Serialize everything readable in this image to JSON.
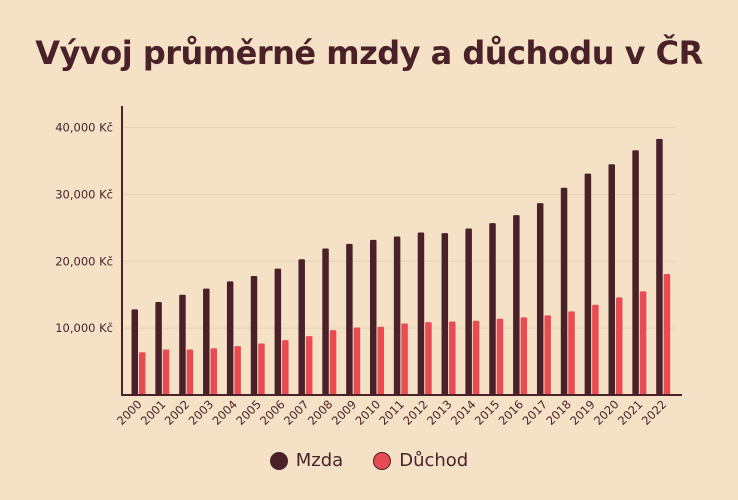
{
  "chart_data": {
    "type": "bar",
    "title": "Vývoj průměrné mzdy a důchodu v ČR",
    "xlabel": "",
    "ylabel": "",
    "categories": [
      "2000",
      "2001",
      "2002",
      "2003",
      "2004",
      "2005",
      "2006",
      "2007",
      "2008",
      "2009",
      "2010",
      "2011",
      "2012",
      "2013",
      "2014",
      "2015",
      "2016",
      "2017",
      "2018",
      "2019",
      "2020",
      "2021",
      "2022"
    ],
    "series": [
      {
        "name": "Mzda",
        "color": "#4a2129",
        "values": [
          12800,
          13900,
          15000,
          15900,
          17000,
          17800,
          18900,
          20300,
          21900,
          22600,
          23200,
          23700,
          24300,
          24200,
          24900,
          25700,
          26900,
          28700,
          31000,
          33100,
          34500,
          36600,
          38300
        ]
      },
      {
        "name": "Důchod",
        "color": "#e84c52",
        "values": [
          6400,
          6800,
          6800,
          7000,
          7300,
          7700,
          8200,
          8800,
          9700,
          10100,
          10200,
          10700,
          10900,
          11000,
          11100,
          11400,
          11600,
          11900,
          12500,
          13500,
          14600,
          15500,
          18100
        ]
      }
    ],
    "yticks": [
      10000,
      20000,
      30000,
      40000
    ],
    "ytick_labels": [
      "10,000 Kč",
      "20,000 Kč",
      "30,000 Kč",
      "40,000 Kč"
    ],
    "ylim": [
      0,
      43000
    ],
    "grid": true,
    "legend": "bottom-center"
  },
  "colors": {
    "background": "#f5e2c6",
    "text": "#4a2129",
    "grid": "#e7d4b8"
  }
}
